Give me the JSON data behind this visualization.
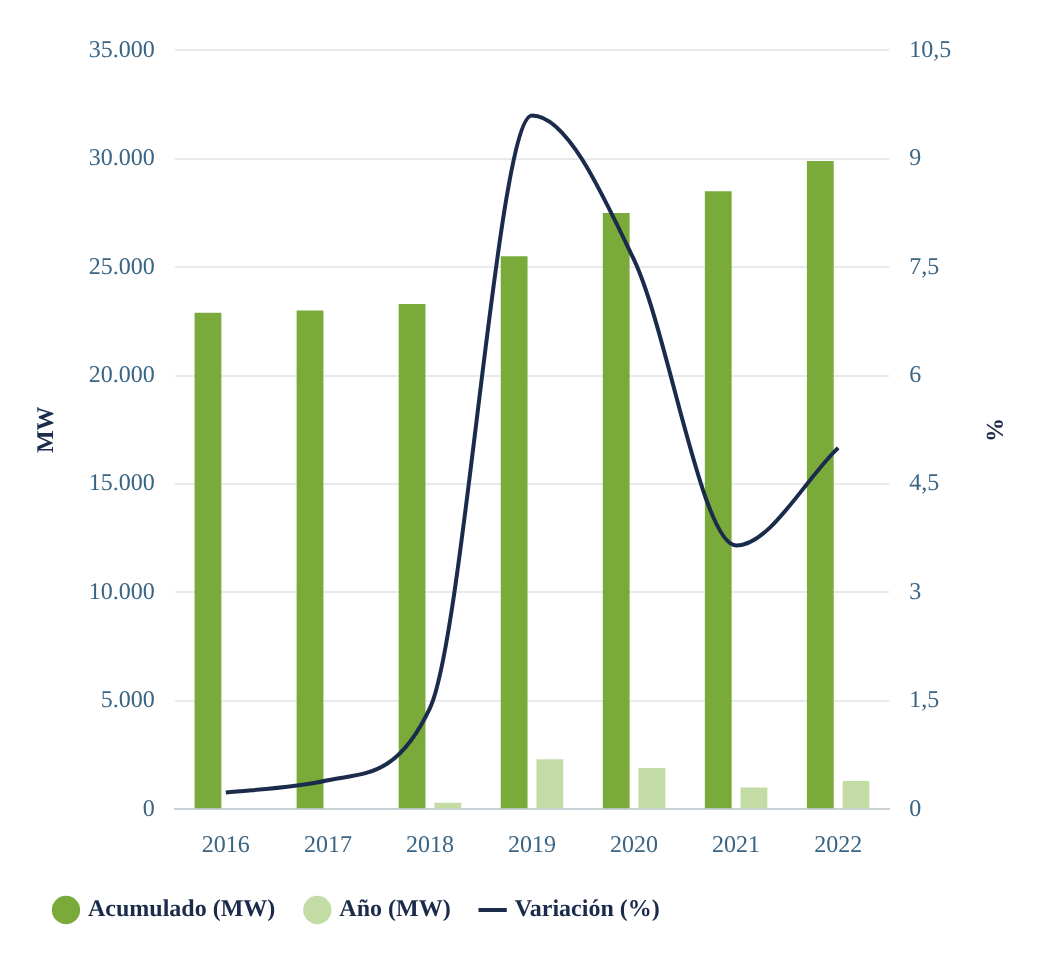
{
  "chart_data": {
    "type": "bar",
    "categories": [
      "2016",
      "2017",
      "2018",
      "2019",
      "2020",
      "2021",
      "2022"
    ],
    "series": [
      {
        "name": "Acumulado (MW)",
        "color": "#7aab3a",
        "values": [
          22900,
          23000,
          23300,
          25500,
          27500,
          28500,
          29900
        ]
      },
      {
        "name": "Año (MW)",
        "color": "#c3dba5",
        "values": [
          null,
          null,
          300,
          2300,
          1900,
          1000,
          1300
        ]
      },
      {
        "name": "Variación (%)",
        "type": "line",
        "axis": "y2",
        "color": "#1b2b4b",
        "values": [
          0.23,
          0.4,
          1.4,
          9.6,
          7.6,
          3.65,
          5.0
        ]
      }
    ],
    "ylabel": "MW",
    "y2label": "%",
    "ylim": [
      0,
      35000
    ],
    "yticks": [
      {
        "value": 0,
        "label": "0"
      },
      {
        "value": 5000,
        "label": "5.000"
      },
      {
        "value": 10000,
        "label": "10.000"
      },
      {
        "value": 15000,
        "label": "15.000"
      },
      {
        "value": 20000,
        "label": "20.000"
      },
      {
        "value": 25000,
        "label": "25.000"
      },
      {
        "value": 30000,
        "label": "30.000"
      },
      {
        "value": 35000,
        "label": "35.000"
      }
    ],
    "y2lim": [
      0,
      10.5
    ],
    "y2ticks": [
      0,
      {
        "value": 1.5,
        "label": "1,5"
      },
      3,
      {
        "value": 4.5,
        "label": "4,5"
      },
      6,
      {
        "value": 7.5,
        "label": "7,5"
      },
      9,
      {
        "value": 10.5,
        "label": "10,5"
      }
    ],
    "grid": "y",
    "legend": "bottom",
    "marker": "none",
    "line_style": "solid"
  }
}
